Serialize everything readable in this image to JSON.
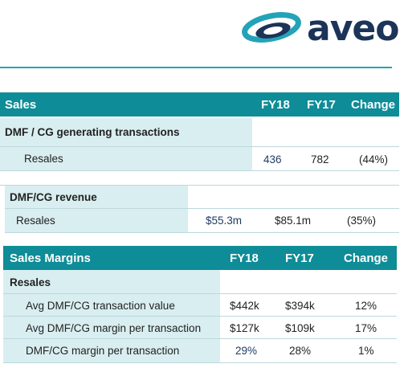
{
  "logo": {
    "text": "aveo",
    "icon": "aveo-swirl-logo",
    "color": "#1b3458",
    "accent": "#24a3b8"
  },
  "sales": {
    "header": {
      "title": "Sales",
      "col1": "FY18",
      "col2": "FY17",
      "col3": "Change"
    },
    "group": "DMF / CG generating transactions",
    "rows": [
      {
        "label": "Resales",
        "fy18": "436",
        "fy17": "782",
        "change": "(44%)"
      }
    ]
  },
  "revenue": {
    "group": "DMF/CG revenue",
    "rows": [
      {
        "label": "Resales",
        "fy18": "$55.3m",
        "fy17": "$85.1m",
        "change": "(35%)"
      }
    ]
  },
  "margins": {
    "header": {
      "title": "Sales Margins",
      "col1": "FY18",
      "col2": "FY17",
      "col3": "Change"
    },
    "group": "Resales",
    "rows": [
      {
        "label": "Avg DMF/CG transaction value",
        "fy18": "$442k",
        "fy17": "$394k",
        "change": "12%"
      },
      {
        "label": "Avg DMF/CG margin per transaction",
        "fy18": "$127k",
        "fy17": "$109k",
        "change": "17%"
      },
      {
        "label": "DMF/CG margin per transaction",
        "fy18": "29%",
        "fy17": "28%",
        "change": "1%"
      }
    ]
  },
  "colors": {
    "header": "#0e8c97",
    "pale": "#d9eef0",
    "rule": "#24a3b8"
  }
}
